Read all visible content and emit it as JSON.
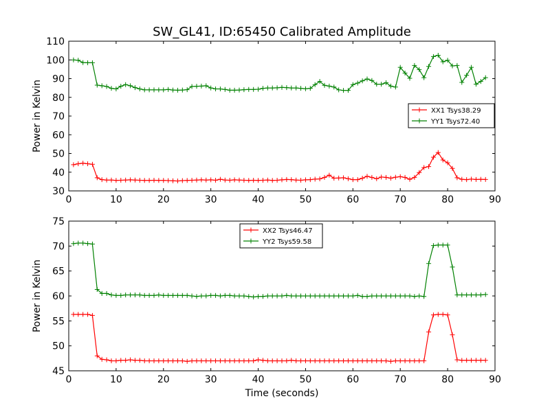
{
  "title": "SW_GL41, ID:65450 Calibrated Amplitude",
  "chart_data": [
    {
      "type": "line",
      "ylabel": "Power in Kelvin",
      "xlabel": "",
      "xlim": [
        0,
        90
      ],
      "ylim": [
        30,
        110
      ],
      "xticks": [
        0,
        10,
        20,
        30,
        40,
        50,
        60,
        70,
        80,
        90
      ],
      "yticks": [
        30,
        40,
        50,
        60,
        70,
        80,
        90,
        100,
        110
      ],
      "grid": false,
      "legend_position": "right",
      "series": [
        {
          "name": "XX1 Tsys38.29",
          "color": "#ff0000",
          "marker": "plus",
          "x": [
            1,
            2,
            3,
            4,
            5,
            6,
            7,
            8,
            9,
            10,
            11,
            12,
            13,
            14,
            15,
            16,
            17,
            18,
            19,
            20,
            21,
            22,
            23,
            24,
            25,
            26,
            27,
            28,
            29,
            30,
            31,
            32,
            33,
            34,
            35,
            36,
            37,
            38,
            39,
            40,
            41,
            42,
            43,
            44,
            45,
            46,
            47,
            48,
            49,
            50,
            51,
            52,
            53,
            54,
            55,
            56,
            57,
            58,
            59,
            60,
            61,
            62,
            63,
            64,
            65,
            66,
            67,
            68,
            69,
            70,
            71,
            72,
            73,
            74,
            75,
            76,
            77,
            78,
            79,
            80,
            81,
            82,
            83,
            84,
            85,
            86,
            87,
            88
          ],
          "values": [
            44,
            44.5,
            44.8,
            44.5,
            44.2,
            37,
            36,
            35.8,
            35.8,
            35.6,
            35.7,
            35.8,
            35.9,
            35.8,
            35.7,
            35.6,
            35.6,
            35.7,
            35.6,
            35.6,
            35.5,
            35.4,
            35.3,
            35.5,
            35.6,
            35.7,
            35.8,
            35.9,
            35.8,
            35.9,
            35.7,
            36.2,
            35.8,
            35.7,
            35.9,
            35.8,
            35.7,
            35.6,
            35.7,
            35.6,
            35.7,
            35.8,
            35.6,
            35.7,
            35.9,
            36.1,
            36,
            35.8,
            35.7,
            35.9,
            36,
            36.3,
            36.4,
            37.2,
            38.4,
            36.8,
            36.9,
            37,
            36.5,
            36,
            36,
            36.8,
            37.8,
            37.2,
            36.5,
            37.4,
            37.2,
            36.8,
            37.3,
            37.6,
            37.2,
            36.2,
            37.2,
            39.8,
            42.5,
            43,
            48,
            50.5,
            46.5,
            45,
            42,
            37,
            36.2,
            36,
            36.3,
            36.1,
            36.2,
            36.1
          ]
        },
        {
          "name": "YY1 Tsys72.40",
          "color": "#008000",
          "marker": "plus",
          "x": [
            1,
            2,
            3,
            4,
            5,
            6,
            7,
            8,
            9,
            10,
            11,
            12,
            13,
            14,
            15,
            16,
            17,
            18,
            19,
            20,
            21,
            22,
            23,
            24,
            25,
            26,
            27,
            28,
            29,
            30,
            31,
            32,
            33,
            34,
            35,
            36,
            37,
            38,
            39,
            40,
            41,
            42,
            43,
            44,
            45,
            46,
            47,
            48,
            49,
            50,
            51,
            52,
            53,
            54,
            55,
            56,
            57,
            58,
            59,
            60,
            61,
            62,
            63,
            64,
            65,
            66,
            67,
            68,
            69,
            70,
            71,
            72,
            73,
            74,
            75,
            76,
            77,
            78,
            79,
            80,
            81,
            82,
            83,
            84,
            85,
            86,
            87,
            88
          ],
          "values": [
            100,
            99.8,
            98.6,
            98.5,
            98.5,
            86.5,
            86.2,
            85.8,
            84.8,
            84.5,
            85.9,
            86.8,
            86.2,
            85.2,
            84.5,
            84,
            84,
            84,
            84,
            84,
            84.2,
            83.9,
            83.8,
            83.9,
            84.1,
            85.8,
            85.9,
            86,
            86.2,
            85,
            84.5,
            84.5,
            84.2,
            83.8,
            83.8,
            83.9,
            84.1,
            84.2,
            84.2,
            84.3,
            84.8,
            85,
            85,
            85.1,
            85.3,
            85.2,
            85,
            85,
            84.8,
            84.6,
            84.8,
            86.8,
            88.5,
            86.4,
            86,
            85.5,
            84,
            83.7,
            83.7,
            86.8,
            87.6,
            88.8,
            89.8,
            89,
            87,
            87,
            87.8,
            86,
            85.5,
            96,
            93,
            90.2,
            97,
            94.8,
            90.5,
            96.5,
            101.8,
            102.5,
            99,
            99.8,
            96.8,
            97,
            88,
            91.8,
            96,
            87,
            88.5,
            90.5
          ]
        }
      ]
    },
    {
      "type": "line",
      "ylabel": "Power in Kelvin",
      "xlabel": "Time (seconds)",
      "xlim": [
        0,
        90
      ],
      "ylim": [
        45,
        75
      ],
      "xticks": [
        0,
        10,
        20,
        30,
        40,
        50,
        60,
        70,
        80,
        90
      ],
      "yticks": [
        45,
        50,
        55,
        60,
        65,
        70,
        75
      ],
      "grid": false,
      "legend_position": "top-center",
      "series": [
        {
          "name": "XX2 Tsys46.47",
          "color": "#ff0000",
          "marker": "plus",
          "x": [
            1,
            2,
            3,
            4,
            5,
            6,
            7,
            8,
            9,
            10,
            11,
            12,
            13,
            14,
            15,
            16,
            17,
            18,
            19,
            20,
            21,
            22,
            23,
            24,
            25,
            26,
            27,
            28,
            29,
            30,
            31,
            32,
            33,
            34,
            35,
            36,
            37,
            38,
            39,
            40,
            41,
            42,
            43,
            44,
            45,
            46,
            47,
            48,
            49,
            50,
            51,
            52,
            53,
            54,
            55,
            56,
            57,
            58,
            59,
            60,
            61,
            62,
            63,
            64,
            65,
            66,
            67,
            68,
            69,
            70,
            71,
            72,
            73,
            74,
            75,
            76,
            77,
            78,
            79,
            80,
            81,
            82,
            83,
            84,
            85,
            86,
            87,
            88
          ],
          "values": [
            56.3,
            56.3,
            56.3,
            56.3,
            56.1,
            48,
            47.3,
            47.2,
            47,
            47,
            47.1,
            47.1,
            47.2,
            47.1,
            47.1,
            47,
            47,
            47,
            47,
            47,
            47,
            47,
            47,
            47,
            46.9,
            47,
            47,
            47,
            47,
            47,
            47,
            47,
            47,
            47,
            47,
            47,
            47,
            47,
            47,
            47.2,
            47.1,
            47,
            47,
            47,
            47,
            47,
            47.1,
            47,
            47,
            47,
            47,
            47,
            47,
            47,
            47,
            47,
            47,
            47,
            47,
            47,
            47,
            47,
            47,
            47,
            47,
            47,
            47,
            46.9,
            47,
            47,
            47,
            47,
            47,
            47,
            47,
            52.8,
            56.2,
            56.3,
            56.3,
            56.2,
            52.2,
            47.2,
            47.1,
            47.1,
            47.1,
            47.1,
            47.1,
            47.1
          ]
        },
        {
          "name": "YY2 Tsys59.58",
          "color": "#008000",
          "marker": "plus",
          "x": [
            1,
            2,
            3,
            4,
            5,
            6,
            7,
            8,
            9,
            10,
            11,
            12,
            13,
            14,
            15,
            16,
            17,
            18,
            19,
            20,
            21,
            22,
            23,
            24,
            25,
            26,
            27,
            28,
            29,
            30,
            31,
            32,
            33,
            34,
            35,
            36,
            37,
            38,
            39,
            40,
            41,
            42,
            43,
            44,
            45,
            46,
            47,
            48,
            49,
            50,
            51,
            52,
            53,
            54,
            55,
            56,
            57,
            58,
            59,
            60,
            61,
            62,
            63,
            64,
            65,
            66,
            67,
            68,
            69,
            70,
            71,
            72,
            73,
            74,
            75,
            76,
            77,
            78,
            79,
            80,
            81,
            82,
            83,
            84,
            85,
            86,
            87,
            88
          ],
          "values": [
            70.5,
            70.6,
            70.6,
            70.5,
            70.4,
            61.3,
            60.5,
            60.5,
            60.2,
            60.1,
            60.1,
            60.2,
            60.2,
            60.2,
            60.2,
            60.1,
            60.1,
            60.1,
            60.2,
            60.1,
            60.1,
            60.1,
            60.1,
            60.1,
            60.1,
            60,
            59.9,
            60,
            60,
            60.1,
            60.1,
            60,
            60.1,
            60.1,
            60,
            60,
            60,
            59.9,
            59.8,
            59.9,
            59.9,
            60,
            60,
            60,
            60,
            60.1,
            60,
            60,
            60,
            60,
            60,
            60,
            60,
            60,
            60,
            60,
            60,
            60,
            60,
            60,
            60.1,
            59.9,
            59.9,
            60,
            60,
            60,
            60,
            60,
            60,
            60,
            60,
            60,
            59.9,
            60,
            59.9,
            66.5,
            70.1,
            70.2,
            70.2,
            70.2,
            65.8,
            60.2,
            60.2,
            60.2,
            60.2,
            60.2,
            60.2,
            60.3
          ]
        }
      ]
    }
  ]
}
